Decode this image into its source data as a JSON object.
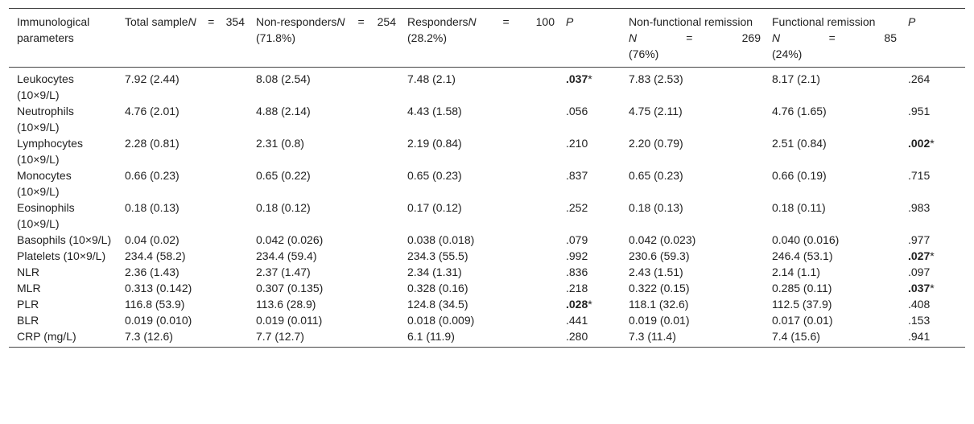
{
  "headers": {
    "param": "Immunological parameters",
    "total": {
      "pre": "Total sample",
      "n_label": "N",
      "eq": "=",
      "n": "354",
      "pct": ""
    },
    "nonresp": {
      "pre": "Non-responders",
      "n_label": "N",
      "eq": "=",
      "n": "254",
      "pct": "(71.8%)"
    },
    "resp": {
      "pre": "Responders",
      "n_label": "N",
      "eq": "=",
      "n": "100",
      "pct": "(28.2%)"
    },
    "p1": "P",
    "nonfunc": {
      "pre": "Non-functional remission",
      "n_label": "N",
      "eq": "=",
      "n": "269",
      "pct": "(76%)"
    },
    "func": {
      "pre": "Functional remission",
      "n_label": "N",
      "eq": "=",
      "n": "85",
      "pct": "(24%)"
    },
    "p2": "P"
  },
  "rows": [
    {
      "param": "Leukocytes (10×9/L)",
      "total": "7.92 (2.44)",
      "nonresp": "8.08 (2.54)",
      "resp": "7.48 (2.1)",
      "p1": ".037",
      "p1_sig": "*",
      "nonfunc": "7.83 (2.53)",
      "func": "8.17 (2.1)",
      "p2": ".264",
      "p2_sig": ""
    },
    {
      "param": "Neutrophils (10×9/L)",
      "total": "4.76 (2.01)",
      "nonresp": "4.88 (2.14)",
      "resp": "4.43 (1.58)",
      "p1": ".056",
      "p1_sig": "",
      "nonfunc": "4.75 (2.11)",
      "func": "4.76 (1.65)",
      "p2": ".951",
      "p2_sig": ""
    },
    {
      "param": "Lymphocytes (10×9/L)",
      "total": "2.28 (0.81)",
      "nonresp": "2.31 (0.8)",
      "resp": "2.19 (0.84)",
      "p1": ".210",
      "p1_sig": "",
      "nonfunc": "2.20 (0.79)",
      "func": "2.51 (0.84)",
      "p2": ".002",
      "p2_sig": "*"
    },
    {
      "param": "Monocytes (10×9/L)",
      "total": "0.66 (0.23)",
      "nonresp": "0.65 (0.22)",
      "resp": "0.65 (0.23)",
      "p1": ".837",
      "p1_sig": "",
      "nonfunc": "0.65 (0.23)",
      "func": "0.66 (0.19)",
      "p2": ".715",
      "p2_sig": ""
    },
    {
      "param": "Eosinophils (10×9/L)",
      "total": "0.18 (0.13)",
      "nonresp": "0.18 (0.12)",
      "resp": "0.17 (0.12)",
      "p1": ".252",
      "p1_sig": "",
      "nonfunc": "0.18 (0.13)",
      "func": "0.18 (0.11)",
      "p2": ".983",
      "p2_sig": ""
    },
    {
      "param": "Basophils (10×9/L)",
      "total": "0.04 (0.02)",
      "nonresp": "0.042 (0.026)",
      "resp": "0.038 (0.018)",
      "p1": ".079",
      "p1_sig": "",
      "nonfunc": "0.042 (0.023)",
      "func": "0.040 (0.016)",
      "p2": ".977",
      "p2_sig": ""
    },
    {
      "param": "Platelets (10×9/L)",
      "total": "234.4 (58.2)",
      "nonresp": "234.4 (59.4)",
      "resp": "234.3 (55.5)",
      "p1": ".992",
      "p1_sig": "",
      "nonfunc": "230.6 (59.3)",
      "func": "246.4 (53.1)",
      "p2": ".027",
      "p2_sig": "*"
    },
    {
      "param": "NLR",
      "total": "2.36 (1.43)",
      "nonresp": "2.37 (1.47)",
      "resp": "2.34 (1.31)",
      "p1": ".836",
      "p1_sig": "",
      "nonfunc": "2.43 (1.51)",
      "func": "2.14 (1.1)",
      "p2": ".097",
      "p2_sig": ""
    },
    {
      "param": "MLR",
      "total": "0.313 (0.142)",
      "nonresp": "0.307 (0.135)",
      "resp": "0.328 (0.16)",
      "p1": ".218",
      "p1_sig": "",
      "nonfunc": "0.322 (0.15)",
      "func": "0.285 (0.11)",
      "p2": ".037",
      "p2_sig": "*"
    },
    {
      "param": "PLR",
      "total": "116.8 (53.9)",
      "nonresp": "113.6 (28.9)",
      "resp": "124.8 (34.5)",
      "p1": ".028",
      "p1_sig": "*",
      "nonfunc": "118.1 (32.6)",
      "func": "112.5 (37.9)",
      "p2": ".408",
      "p2_sig": ""
    },
    {
      "param": "BLR",
      "total": "0.019 (0.010)",
      "nonresp": "0.019 (0.011)",
      "resp": "0.018 (0.009)",
      "p1": ".441",
      "p1_sig": "",
      "nonfunc": "0.019 (0.01)",
      "func": "0.017 (0.01)",
      "p2": ".153",
      "p2_sig": ""
    },
    {
      "param": "CRP (mg/L)",
      "total": "7.3 (12.6)",
      "nonresp": "7.7 (12.7)",
      "resp": "6.1 (11.9)",
      "p1": ".280",
      "p1_sig": "",
      "nonfunc": "7.3 (11.4)",
      "func": "7.4 (15.6)",
      "p2": ".941",
      "p2_sig": ""
    }
  ]
}
